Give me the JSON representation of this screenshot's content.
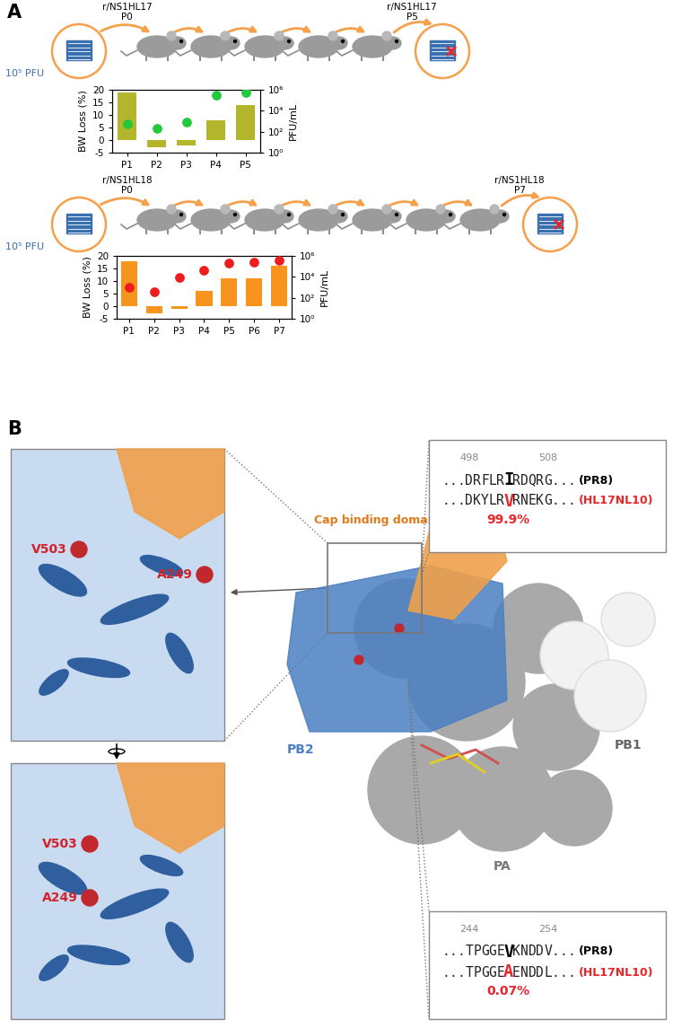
{
  "panel_labels": [
    "A",
    "B"
  ],
  "panel_a": {
    "rows": [
      {
        "virus": "r/NS1HL17",
        "start": "P0",
        "end": "P5",
        "inoculum": "10⁵ PFU"
      },
      {
        "virus": "r/NS1HL18",
        "start": "P0",
        "end": "P7",
        "inoculum": "10⁵ PFU"
      }
    ]
  },
  "chart_data": [
    {
      "type": "bar",
      "categories": [
        "P1",
        "P2",
        "P3",
        "P4",
        "P5"
      ],
      "values": [
        19,
        -3,
        -2,
        8,
        14
      ],
      "color": "#b3b52a",
      "ylabel": "BW Loss (%)",
      "ylim": [
        -5,
        20
      ],
      "yticks": [
        -5,
        0,
        5,
        10,
        15,
        20
      ],
      "y2label": "PFU/mL",
      "y2lim": [
        1,
        1000000
      ],
      "y2ticks": [
        {
          "value": 1,
          "label": "10⁰"
        },
        {
          "value": 100,
          "label": "10²"
        },
        {
          "value": 10000,
          "label": "10⁴"
        },
        {
          "value": 1000000,
          "label": "10⁶"
        }
      ],
      "series": [
        {
          "type": "scatter",
          "axis": "y2",
          "log": "y",
          "color": "#22c93a",
          "marker": "o",
          "values": [
            600,
            200,
            800,
            300000,
            600000
          ]
        }
      ]
    },
    {
      "type": "bar",
      "categories": [
        "P1",
        "P2",
        "P3",
        "P4",
        "P5",
        "P6",
        "P7"
      ],
      "values": [
        18,
        -3,
        -1,
        6,
        11,
        11,
        16
      ],
      "color": "#f7941d",
      "ylabel": "BW Loss (%)",
      "ylim": [
        -5,
        20
      ],
      "yticks": [
        -5,
        0,
        5,
        10,
        15,
        20
      ],
      "y2label": "PFU/mL",
      "y2lim": [
        1,
        1000000
      ],
      "y2ticks": [
        {
          "value": 1,
          "label": "10⁰"
        },
        {
          "value": 100,
          "label": "10²"
        },
        {
          "value": 10000,
          "label": "10⁴"
        },
        {
          "value": 1000000,
          "label": "10⁶"
        }
      ],
      "series": [
        {
          "type": "scatter",
          "axis": "y2",
          "log": "y",
          "color": "#ee1c1c",
          "marker": "o",
          "values": [
            1000,
            400,
            8000,
            40000,
            200000,
            250000,
            400000
          ]
        }
      ]
    }
  ],
  "panel_b": {
    "structure_labels": {
      "cap": "Cap binding domain",
      "pb2": "PB2",
      "pb1": "PB1",
      "pa": "PA"
    },
    "residues": [
      "V503",
      "A249"
    ],
    "sequence_boxes": [
      {
        "start": 498,
        "end": 508,
        "rows": [
          {
            "sequence": "...DRFLRIRDQRG...",
            "strain": "(PR8)",
            "color": "#000000"
          },
          {
            "sequence": "...DKYLRVRNEKG...",
            "strain": "(HL17NL10)",
            "color": "#e8262a"
          }
        ],
        "frequency": "99.9%"
      },
      {
        "start": 244,
        "end": 254,
        "rows": [
          {
            "sequence": "...TPGGEVKNDDV...",
            "strain": "(PR8)",
            "color": "#000000"
          },
          {
            "sequence": "...TPGGEAENDDL...",
            "strain": "(HL17NL10)",
            "color": "#e8262a"
          }
        ],
        "frequency": "0.07%"
      }
    ]
  }
}
